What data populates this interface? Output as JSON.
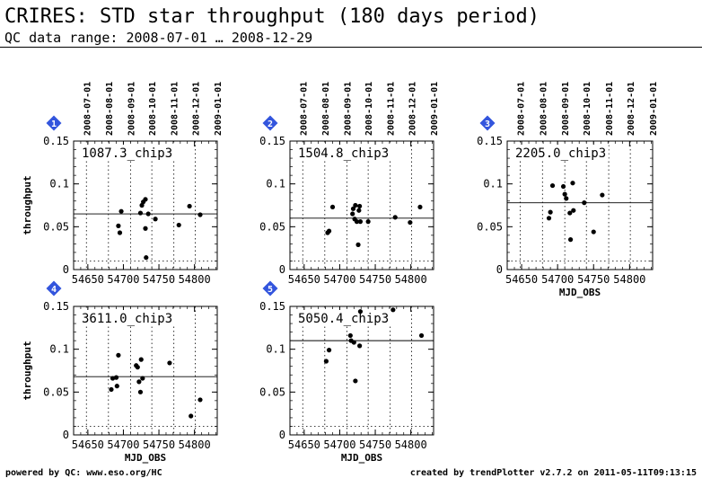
{
  "header": {
    "title": "CRIRES: STD star throughput (180 days period)",
    "subtitle": "QC data range: 2008-07-01 … 2008-12-29"
  },
  "footer": {
    "left": "powered by QC: www.eso.org/HC",
    "right": "created by trendPlotter v2.7.2 on 2011-05-11T09:13:15"
  },
  "colors": {
    "marker": "#3355dd",
    "marker_text": "#ffffff",
    "ink": "#000000"
  },
  "chart_data": [
    {
      "type": "scatter",
      "panel": "1",
      "label": "1087.3_chip3",
      "xlabel": "",
      "ylabel": "throughput",
      "xlim": [
        54630,
        54832
      ],
      "ylim": [
        0,
        0.15
      ],
      "xticks": [
        "54650",
        "54700",
        "54750",
        "54800"
      ],
      "yticks": [
        "0",
        "0.05",
        "0.1",
        "0.15"
      ],
      "top_ticks": [
        "2008-07-01",
        "2008-08-01",
        "2008-09-01",
        "2008-10-01",
        "2008-11-01",
        "2008-12-01",
        "2009-01-01"
      ],
      "reference_line": 0.065,
      "points": [
        [
          54693,
          0.051
        ],
        [
          54695,
          0.043
        ],
        [
          54697,
          0.068
        ],
        [
          54724,
          0.066
        ],
        [
          54726,
          0.075
        ],
        [
          54728,
          0.079
        ],
        [
          54731,
          0.048
        ],
        [
          54731,
          0.082
        ],
        [
          54732,
          0.014
        ],
        [
          54735,
          0.065
        ],
        [
          54745,
          0.059
        ],
        [
          54778,
          0.052
        ],
        [
          54793,
          0.074
        ],
        [
          54808,
          0.064
        ]
      ]
    },
    {
      "type": "scatter",
      "panel": "2",
      "label": "1504.8_chip3",
      "xlabel": "",
      "ylabel": "",
      "xlim": [
        54630,
        54832
      ],
      "ylim": [
        0,
        0.15
      ],
      "xticks": [
        "54650",
        "54700",
        "54750",
        "54800"
      ],
      "yticks": [
        "0",
        "0.05",
        "0.1",
        "0.15"
      ],
      "top_ticks": [
        "2008-07-01",
        "2008-08-01",
        "2008-09-01",
        "2008-10-01",
        "2008-11-01",
        "2008-12-01",
        "2009-01-01"
      ],
      "reference_line": 0.06,
      "points": [
        [
          54683,
          0.043
        ],
        [
          54685,
          0.045
        ],
        [
          54690,
          0.073
        ],
        [
          54718,
          0.065
        ],
        [
          54719,
          0.071
        ],
        [
          54721,
          0.059
        ],
        [
          54722,
          0.075
        ],
        [
          54724,
          0.056
        ],
        [
          54726,
          0.029
        ],
        [
          54727,
          0.069
        ],
        [
          54728,
          0.074
        ],
        [
          54729,
          0.056
        ],
        [
          54740,
          0.056
        ],
        [
          54778,
          0.061
        ],
        [
          54799,
          0.055
        ],
        [
          54813,
          0.073
        ]
      ]
    },
    {
      "type": "scatter",
      "panel": "3",
      "label": "2205.0_chip3",
      "xlabel": "MJD_OBS",
      "ylabel": "",
      "xlim": [
        54630,
        54832
      ],
      "ylim": [
        0,
        0.15
      ],
      "xticks": [
        "54650",
        "54700",
        "54750",
        "54800"
      ],
      "yticks": [
        "0",
        "0.05",
        "0.1",
        "0.15"
      ],
      "top_ticks": [
        "2008-07-01",
        "2008-08-01",
        "2008-09-01",
        "2008-10-01",
        "2008-11-01",
        "2008-12-01",
        "2009-01-01"
      ],
      "reference_line": 0.078,
      "points": [
        [
          54688,
          0.06
        ],
        [
          54690,
          0.067
        ],
        [
          54693,
          0.098
        ],
        [
          54708,
          0.097
        ],
        [
          54710,
          0.088
        ],
        [
          54712,
          0.083
        ],
        [
          54717,
          0.066
        ],
        [
          54718,
          0.035
        ],
        [
          54721,
          0.101
        ],
        [
          54722,
          0.069
        ],
        [
          54737,
          0.078
        ],
        [
          54750,
          0.044
        ],
        [
          54762,
          0.087
        ]
      ]
    },
    {
      "type": "scatter",
      "panel": "4",
      "label": "3611.0_chip3",
      "xlabel": "MJD_OBS",
      "ylabel": "throughput",
      "xlim": [
        54630,
        54832
      ],
      "ylim": [
        0,
        0.15
      ],
      "xticks": [
        "54650",
        "54700",
        "54750",
        "54800"
      ],
      "yticks": [
        "0",
        "0.05",
        "0.1",
        "0.15"
      ],
      "top_ticks": [],
      "reference_line": 0.068,
      "points": [
        [
          54683,
          0.053
        ],
        [
          54685,
          0.066
        ],
        [
          54690,
          0.067
        ],
        [
          54691,
          0.057
        ],
        [
          54693,
          0.093
        ],
        [
          54718,
          0.081
        ],
        [
          54720,
          0.079
        ],
        [
          54722,
          0.062
        ],
        [
          54724,
          0.05
        ],
        [
          54725,
          0.088
        ],
        [
          54727,
          0.066
        ],
        [
          54765,
          0.084
        ],
        [
          54795,
          0.022
        ],
        [
          54808,
          0.041
        ]
      ]
    },
    {
      "type": "scatter",
      "panel": "5",
      "label": "5050.4_chip3",
      "xlabel": "MJD_OBS",
      "ylabel": "",
      "xlim": [
        54630,
        54832
      ],
      "ylim": [
        0,
        0.15
      ],
      "xticks": [
        "54650",
        "54700",
        "54750",
        "54800"
      ],
      "yticks": [
        "0",
        "0.05",
        "0.1",
        "0.15"
      ],
      "top_ticks": [],
      "reference_line": 0.11,
      "points": [
        [
          54681,
          0.086
        ],
        [
          54685,
          0.099
        ],
        [
          54715,
          0.116
        ],
        [
          54716,
          0.11
        ],
        [
          54720,
          0.108
        ],
        [
          54722,
          0.063
        ],
        [
          54728,
          0.104
        ],
        [
          54729,
          0.144
        ],
        [
          54775,
          0.146
        ],
        [
          54815,
          0.116
        ]
      ]
    }
  ]
}
